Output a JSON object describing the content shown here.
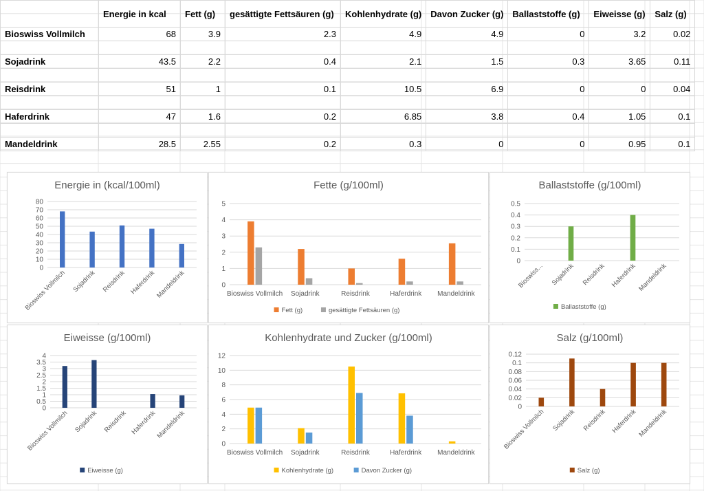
{
  "table": {
    "headers": [
      "",
      "Energie in kcal",
      "Fett (g)",
      "gesättigte Fettsäuren (g)",
      "Kohlenhydrate (g)",
      "Davon Zucker (g)",
      "Ballaststoffe (g)",
      "Eiweisse (g)",
      "Salz (g)"
    ],
    "rows": [
      {
        "name": "Bioswiss Vollmilch",
        "values": [
          "68",
          "3.9",
          "2.3",
          "4.9",
          "4.9",
          "0",
          "3.2",
          "0.02"
        ]
      },
      {
        "name": "Sojadrink",
        "values": [
          "43.5",
          "2.2",
          "0.4",
          "2.1",
          "1.5",
          "0.3",
          "3.65",
          "0.11"
        ]
      },
      {
        "name": "Reisdrink",
        "values": [
          "51",
          "1",
          "0.1",
          "10.5",
          "6.9",
          "0",
          "0",
          "0.04"
        ]
      },
      {
        "name": "Haferdrink",
        "values": [
          "47",
          "1.6",
          "0.2",
          "6.85",
          "3.8",
          "0.4",
          "1.05",
          "0.1"
        ]
      },
      {
        "name": "Mandeldrink",
        "values": [
          "28.5",
          "2.55",
          "0.2",
          "0.3",
          "0",
          "0",
          "0.95",
          "0.1"
        ]
      }
    ]
  },
  "colors": {
    "energie": "#4472c4",
    "fett": "#ed7d31",
    "fettsaeuren": "#a5a5a5",
    "ballast": "#70ad47",
    "eiweiss": "#264478",
    "kohlenhydrate": "#ffc000",
    "zucker": "#5b9bd5",
    "salz": "#9e480e",
    "grid": "#d9d9d9",
    "text": "#595959"
  },
  "chart_data": [
    {
      "id": "energie",
      "type": "bar",
      "title": "Energie in (kcal/100ml)",
      "categories": [
        "Bioswiss Vollmilch",
        "Sojadrink",
        "Reisdrink",
        "Haferdrink",
        "Mandeldrink"
      ],
      "category_labels": [
        "Bioswiss Vollmilch",
        "Sojadrink",
        "Reisdrink",
        "Haferdrink",
        "Mandeldrink"
      ],
      "yticks": [
        "0",
        "10",
        "20",
        "30",
        "40",
        "50",
        "60",
        "70",
        "80"
      ],
      "ylim": [
        0,
        80
      ],
      "rotate_labels": true,
      "legend": [],
      "series": [
        {
          "name": "",
          "color_key": "energie",
          "values": [
            68,
            43.5,
            51,
            47,
            28.5
          ]
        }
      ]
    },
    {
      "id": "fette",
      "type": "bar",
      "title": "Fette (g/100ml)",
      "categories": [
        "Bioswiss Vollmilch",
        "Sojadrink",
        "Reisdrink",
        "Haferdrink",
        "Mandeldrink"
      ],
      "category_labels": [
        "Bioswiss Vollmilch",
        "Sojadrink",
        "Reisdrink",
        "Haferdrink",
        "Mandeldrink"
      ],
      "yticks": [
        "0",
        "1",
        "2",
        "3",
        "4",
        "5"
      ],
      "ylim": [
        0,
        5
      ],
      "rotate_labels": false,
      "legend": [
        "Fett (g)",
        "gesättigte Fettsäuren (g)"
      ],
      "series": [
        {
          "name": "Fett (g)",
          "color_key": "fett",
          "values": [
            3.9,
            2.2,
            1,
            1.6,
            2.55
          ]
        },
        {
          "name": "gesättigte Fettsäuren (g)",
          "color_key": "fettsaeuren",
          "values": [
            2.3,
            0.4,
            0.1,
            0.2,
            0.2
          ]
        }
      ]
    },
    {
      "id": "ballast",
      "type": "bar",
      "title": "Ballaststoffe (g/100ml)",
      "categories": [
        "Bioswiss Vollmilch",
        "Sojadrink",
        "Reisdrink",
        "Haferdrink",
        "Mandeldrink"
      ],
      "category_labels": [
        "Bioswiss...",
        "Sojadrink",
        "Reisdrink",
        "Haferdrink",
        "Mandeldrink"
      ],
      "yticks": [
        "0",
        "0.1",
        "0.2",
        "0.3",
        "0.4",
        "0.5"
      ],
      "ylim": [
        0,
        0.5
      ],
      "rotate_labels": true,
      "legend": [
        "Ballaststoffe (g)"
      ],
      "series": [
        {
          "name": "Ballaststoffe (g)",
          "color_key": "ballast",
          "values": [
            0,
            0.3,
            0,
            0.4,
            0
          ]
        }
      ]
    },
    {
      "id": "eiweiss",
      "type": "bar",
      "title": "Eiweisse (g/100ml)",
      "categories": [
        "Bioswiss Vollmilch",
        "Sojadrink",
        "Reisdrink",
        "Haferdrink",
        "Mandeldrink"
      ],
      "category_labels": [
        "Bioswiss Vollmilch",
        "Sojadrink",
        "Reisdrink",
        "Haferdrink",
        "Mandeldrink"
      ],
      "yticks": [
        "0",
        "0.5",
        "1",
        "1.5",
        "2",
        "2.5",
        "3",
        "3.5",
        "4"
      ],
      "ylim": [
        0,
        4
      ],
      "rotate_labels": true,
      "legend": [
        "Eiweisse (g)"
      ],
      "series": [
        {
          "name": "Eiweisse (g)",
          "color_key": "eiweiss",
          "values": [
            3.2,
            3.65,
            0,
            1.05,
            0.95
          ]
        }
      ]
    },
    {
      "id": "kohlenhydrate",
      "type": "bar",
      "title": "Kohlenhydrate und Zucker (g/100ml)",
      "categories": [
        "Bioswiss Vollmilch",
        "Sojadrink",
        "Reisdrink",
        "Haferdrink",
        "Mandeldrink"
      ],
      "category_labels": [
        "Bioswiss Vollmilch",
        "Sojadrink",
        "Reisdrink",
        "Haferdrink",
        "Mandeldrink"
      ],
      "yticks": [
        "0",
        "2",
        "4",
        "6",
        "8",
        "10",
        "12"
      ],
      "ylim": [
        0,
        12
      ],
      "rotate_labels": false,
      "legend": [
        "Kohlenhydrate (g)",
        "Davon Zucker (g)"
      ],
      "series": [
        {
          "name": "Kohlenhydrate (g)",
          "color_key": "kohlenhydrate",
          "values": [
            4.9,
            2.1,
            10.5,
            6.85,
            0.3
          ]
        },
        {
          "name": "Davon Zucker (g)",
          "color_key": "zucker",
          "values": [
            4.9,
            1.5,
            6.9,
            3.8,
            0
          ]
        }
      ]
    },
    {
      "id": "salz",
      "type": "bar",
      "title": "Salz (g/100ml)",
      "categories": [
        "Bioswiss Vollmilch",
        "Sojadrink",
        "Reisdrink",
        "Haferdrink",
        "Mandeldrink"
      ],
      "category_labels": [
        "Bioswiss Vollmilch",
        "Sojadrink",
        "Reisdrink",
        "Haferdrink",
        "Mandeldrink"
      ],
      "yticks": [
        "0",
        "0.02",
        "0.04",
        "0.06",
        "0.08",
        "0.1",
        "0.12"
      ],
      "ylim": [
        0,
        0.12
      ],
      "rotate_labels": true,
      "legend": [
        "Salz (g)"
      ],
      "series": [
        {
          "name": "Salz (g)",
          "color_key": "salz",
          "values": [
            0.02,
            0.11,
            0.04,
            0.1,
            0.1
          ]
        }
      ]
    }
  ]
}
